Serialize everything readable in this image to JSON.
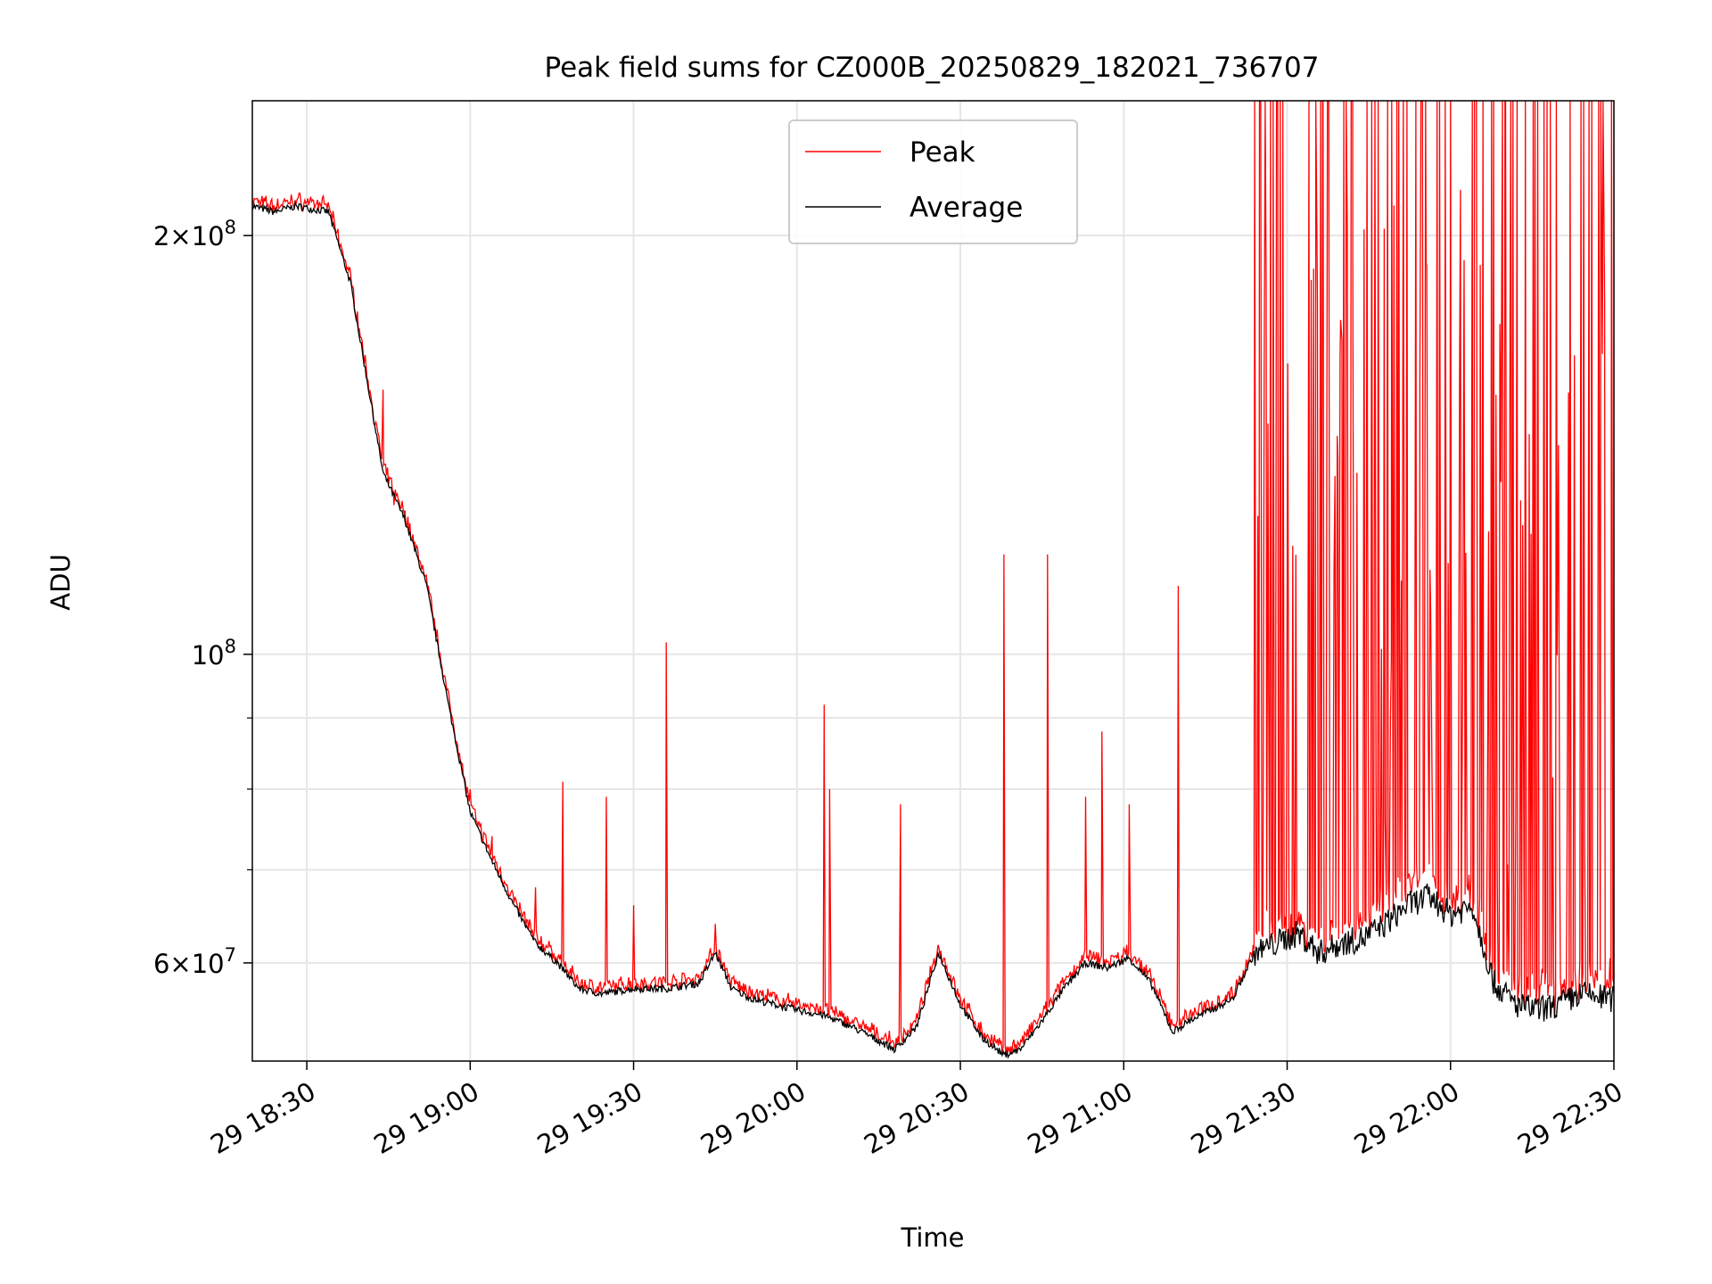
{
  "colors": {
    "peak": "#ff0000",
    "average": "#000000",
    "grid": "#e6e6e6",
    "legend_border": "#cccccc"
  },
  "chart_data": {
    "type": "line",
    "title": "Peak field sums for CZ000B_20250829_182021_736707",
    "xlabel": "Time",
    "ylabel": "ADU",
    "yscale": "log",
    "grid": true,
    "legend_placement": "top-center",
    "xlim": [
      "2025-08-29 18:20",
      "2025-08-29 22:30"
    ],
    "ylim": [
      51000000,
      250000000
    ],
    "x_ticks": [
      {
        "value": "2025-08-29 18:30",
        "label": "29 18:30"
      },
      {
        "value": "2025-08-29 19:00",
        "label": "29 19:00"
      },
      {
        "value": "2025-08-29 19:30",
        "label": "29 19:30"
      },
      {
        "value": "2025-08-29 20:00",
        "label": "29 20:00"
      },
      {
        "value": "2025-08-29 20:30",
        "label": "29 20:30"
      },
      {
        "value": "2025-08-29 21:00",
        "label": "29 21:00"
      },
      {
        "value": "2025-08-29 21:30",
        "label": "29 21:30"
      },
      {
        "value": "2025-08-29 22:00",
        "label": "29 22:00"
      },
      {
        "value": "2025-08-29 22:30",
        "label": "29 22:30"
      }
    ],
    "y_ticks": [
      {
        "value": 200000000,
        "mantissa": "2",
        "exponent": "8"
      },
      {
        "value": 100000000,
        "mantissa": "",
        "exponent": "8"
      },
      {
        "value": 60000000,
        "mantissa": "6",
        "exponent": "7"
      }
    ],
    "y_minor_ticks": [
      70000000,
      80000000,
      90000000
    ],
    "series": [
      {
        "name": "Average",
        "color": "#000000",
        "x": [
          "2025-08-29 18:20",
          "2025-08-29 18:24",
          "2025-08-29 18:28",
          "2025-08-29 18:31",
          "2025-08-29 18:34",
          "2025-08-29 18:38",
          "2025-08-29 18:41",
          "2025-08-29 18:44",
          "2025-08-29 18:48",
          "2025-08-29 18:52",
          "2025-08-29 18:56",
          "2025-08-29 19:00",
          "2025-08-29 19:04",
          "2025-08-29 19:08",
          "2025-08-29 19:12",
          "2025-08-29 19:16",
          "2025-08-29 19:20",
          "2025-08-29 19:24",
          "2025-08-29 19:30",
          "2025-08-29 19:36",
          "2025-08-29 19:42",
          "2025-08-29 19:45",
          "2025-08-29 19:48",
          "2025-08-29 19:52",
          "2025-08-29 19:56",
          "2025-08-29 20:00",
          "2025-08-29 20:05",
          "2025-08-29 20:10",
          "2025-08-29 20:14",
          "2025-08-29 20:18",
          "2025-08-29 20:22",
          "2025-08-29 20:26",
          "2025-08-29 20:30",
          "2025-08-29 20:34",
          "2025-08-29 20:38",
          "2025-08-29 20:41",
          "2025-08-29 20:45",
          "2025-08-29 20:49",
          "2025-08-29 20:53",
          "2025-08-29 20:57",
          "2025-08-29 21:01",
          "2025-08-29 21:05",
          "2025-08-29 21:09",
          "2025-08-29 21:12",
          "2025-08-29 21:16",
          "2025-08-29 21:20",
          "2025-08-29 21:24",
          "2025-08-29 21:28",
          "2025-08-29 21:32",
          "2025-08-29 21:36",
          "2025-08-29 21:40",
          "2025-08-29 21:44",
          "2025-08-29 21:48",
          "2025-08-29 21:52",
          "2025-08-29 21:56",
          "2025-08-29 22:00",
          "2025-08-29 22:04",
          "2025-08-29 22:08",
          "2025-08-29 22:12",
          "2025-08-29 22:16",
          "2025-08-29 22:20",
          "2025-08-29 22:24",
          "2025-08-29 22:30"
        ],
        "y": [
          210000000,
          208000000,
          210000000,
          209000000,
          208000000,
          185000000,
          158000000,
          135000000,
          125000000,
          112000000,
          92000000,
          77000000,
          71000000,
          66000000,
          62000000,
          60000000,
          57500000,
          57000000,
          57500000,
          57500000,
          58000000,
          61000000,
          57500000,
          56500000,
          56000000,
          55500000,
          55000000,
          54000000,
          53000000,
          52000000,
          54000000,
          61000000,
          56000000,
          53000000,
          51500000,
          52000000,
          54500000,
          57500000,
          60000000,
          59500000,
          60500000,
          58000000,
          53500000,
          54500000,
          55500000,
          56500000,
          61000000,
          62000000,
          63000000,
          61000000,
          62000000,
          62500000,
          64000000,
          66000000,
          67000000,
          65000000,
          66000000,
          58000000,
          56000000,
          55500000,
          56000000,
          57000000,
          56500000
        ]
      },
      {
        "name": "Peak",
        "color": "#ff0000",
        "note_spikes": "sharp upward spikes above the average curve",
        "spikes": [
          {
            "x": "2025-08-29 18:44",
            "y": 155000000
          },
          {
            "x": "2025-08-29 18:46",
            "y": 128000000
          },
          {
            "x": "2025-08-29 18:50",
            "y": 119000000
          },
          {
            "x": "2025-08-29 19:00",
            "y": 80000000
          },
          {
            "x": "2025-08-29 19:04",
            "y": 74000000
          },
          {
            "x": "2025-08-29 19:12",
            "y": 68000000
          },
          {
            "x": "2025-08-29 19:17",
            "y": 81000000
          },
          {
            "x": "2025-08-29 19:25",
            "y": 79000000
          },
          {
            "x": "2025-08-29 19:30",
            "y": 66000000
          },
          {
            "x": "2025-08-29 19:36",
            "y": 102000000
          },
          {
            "x": "2025-08-29 19:45",
            "y": 64000000
          },
          {
            "x": "2025-08-29 20:05",
            "y": 92000000
          },
          {
            "x": "2025-08-29 20:06",
            "y": 80000000
          },
          {
            "x": "2025-08-29 20:19",
            "y": 78000000
          },
          {
            "x": "2025-08-29 20:38",
            "y": 118000000
          },
          {
            "x": "2025-08-29 20:46",
            "y": 118000000
          },
          {
            "x": "2025-08-29 20:53",
            "y": 79000000
          },
          {
            "x": "2025-08-29 20:56",
            "y": 88000000
          },
          {
            "x": "2025-08-29 21:01",
            "y": 78000000
          },
          {
            "x": "2025-08-29 21:10",
            "y": 112000000
          },
          {
            "x": "2025-08-29 21:26",
            "y": 178000000
          },
          {
            "x": "2025-08-29 21:28",
            "y": 250000000
          },
          {
            "x": "2025-08-29 21:34",
            "y": 250000000
          },
          {
            "x": "2025-08-29 21:40",
            "y": 250000000
          },
          {
            "x": "2025-08-29 21:46",
            "y": 250000000
          },
          {
            "x": "2025-08-29 21:52",
            "y": 250000000
          },
          {
            "x": "2025-08-29 21:58",
            "y": 250000000
          },
          {
            "x": "2025-08-29 22:04",
            "y": 250000000
          },
          {
            "x": "2025-08-29 22:10",
            "y": 250000000
          },
          {
            "x": "2025-08-29 22:16",
            "y": 250000000
          },
          {
            "x": "2025-08-29 22:22",
            "y": 250000000
          },
          {
            "x": "2025-08-29 22:28",
            "y": 250000000
          }
        ]
      }
    ],
    "legend": [
      {
        "label": "Peak",
        "color": "#ff0000"
      },
      {
        "label": "Average",
        "color": "#000000"
      }
    ]
  }
}
